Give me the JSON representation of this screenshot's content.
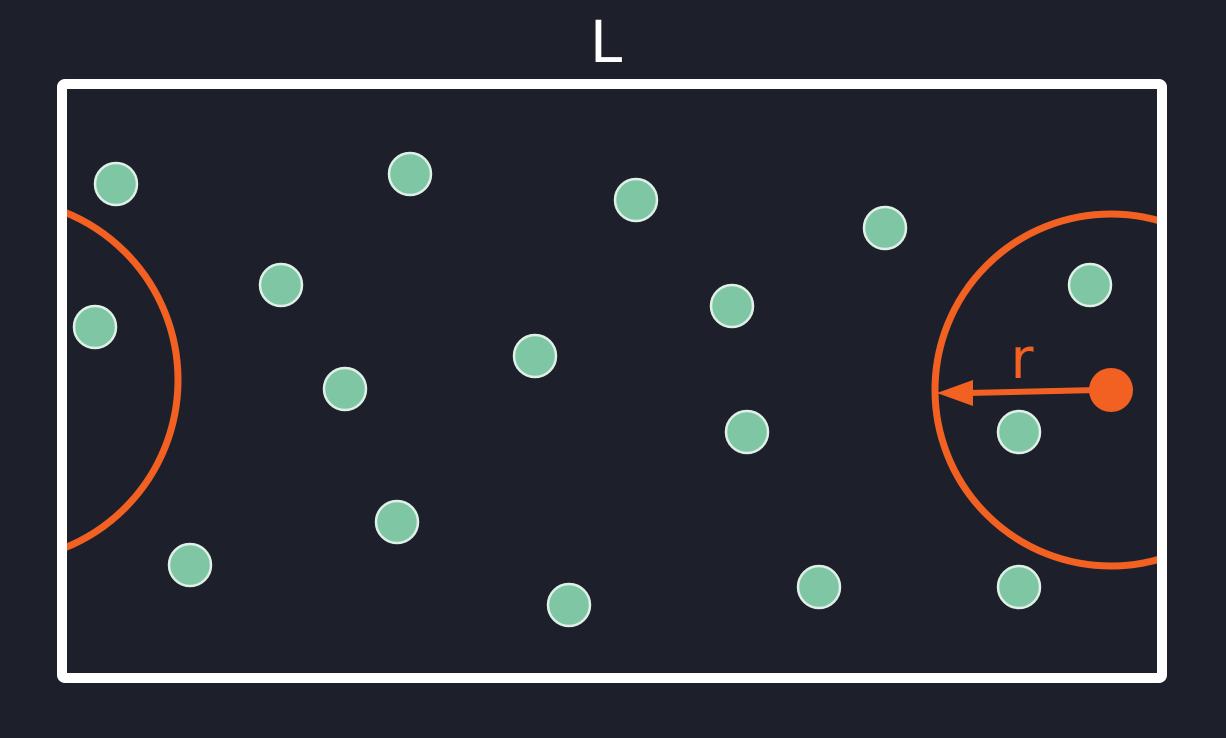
{
  "labels": {
    "length": "L",
    "radius": "r"
  },
  "colors": {
    "background": "#1d202b",
    "box": "#ffffff",
    "particle_fill": "#7fc6a4",
    "particle_stroke": "#dff0e6",
    "accent": "#f26122"
  }
}
